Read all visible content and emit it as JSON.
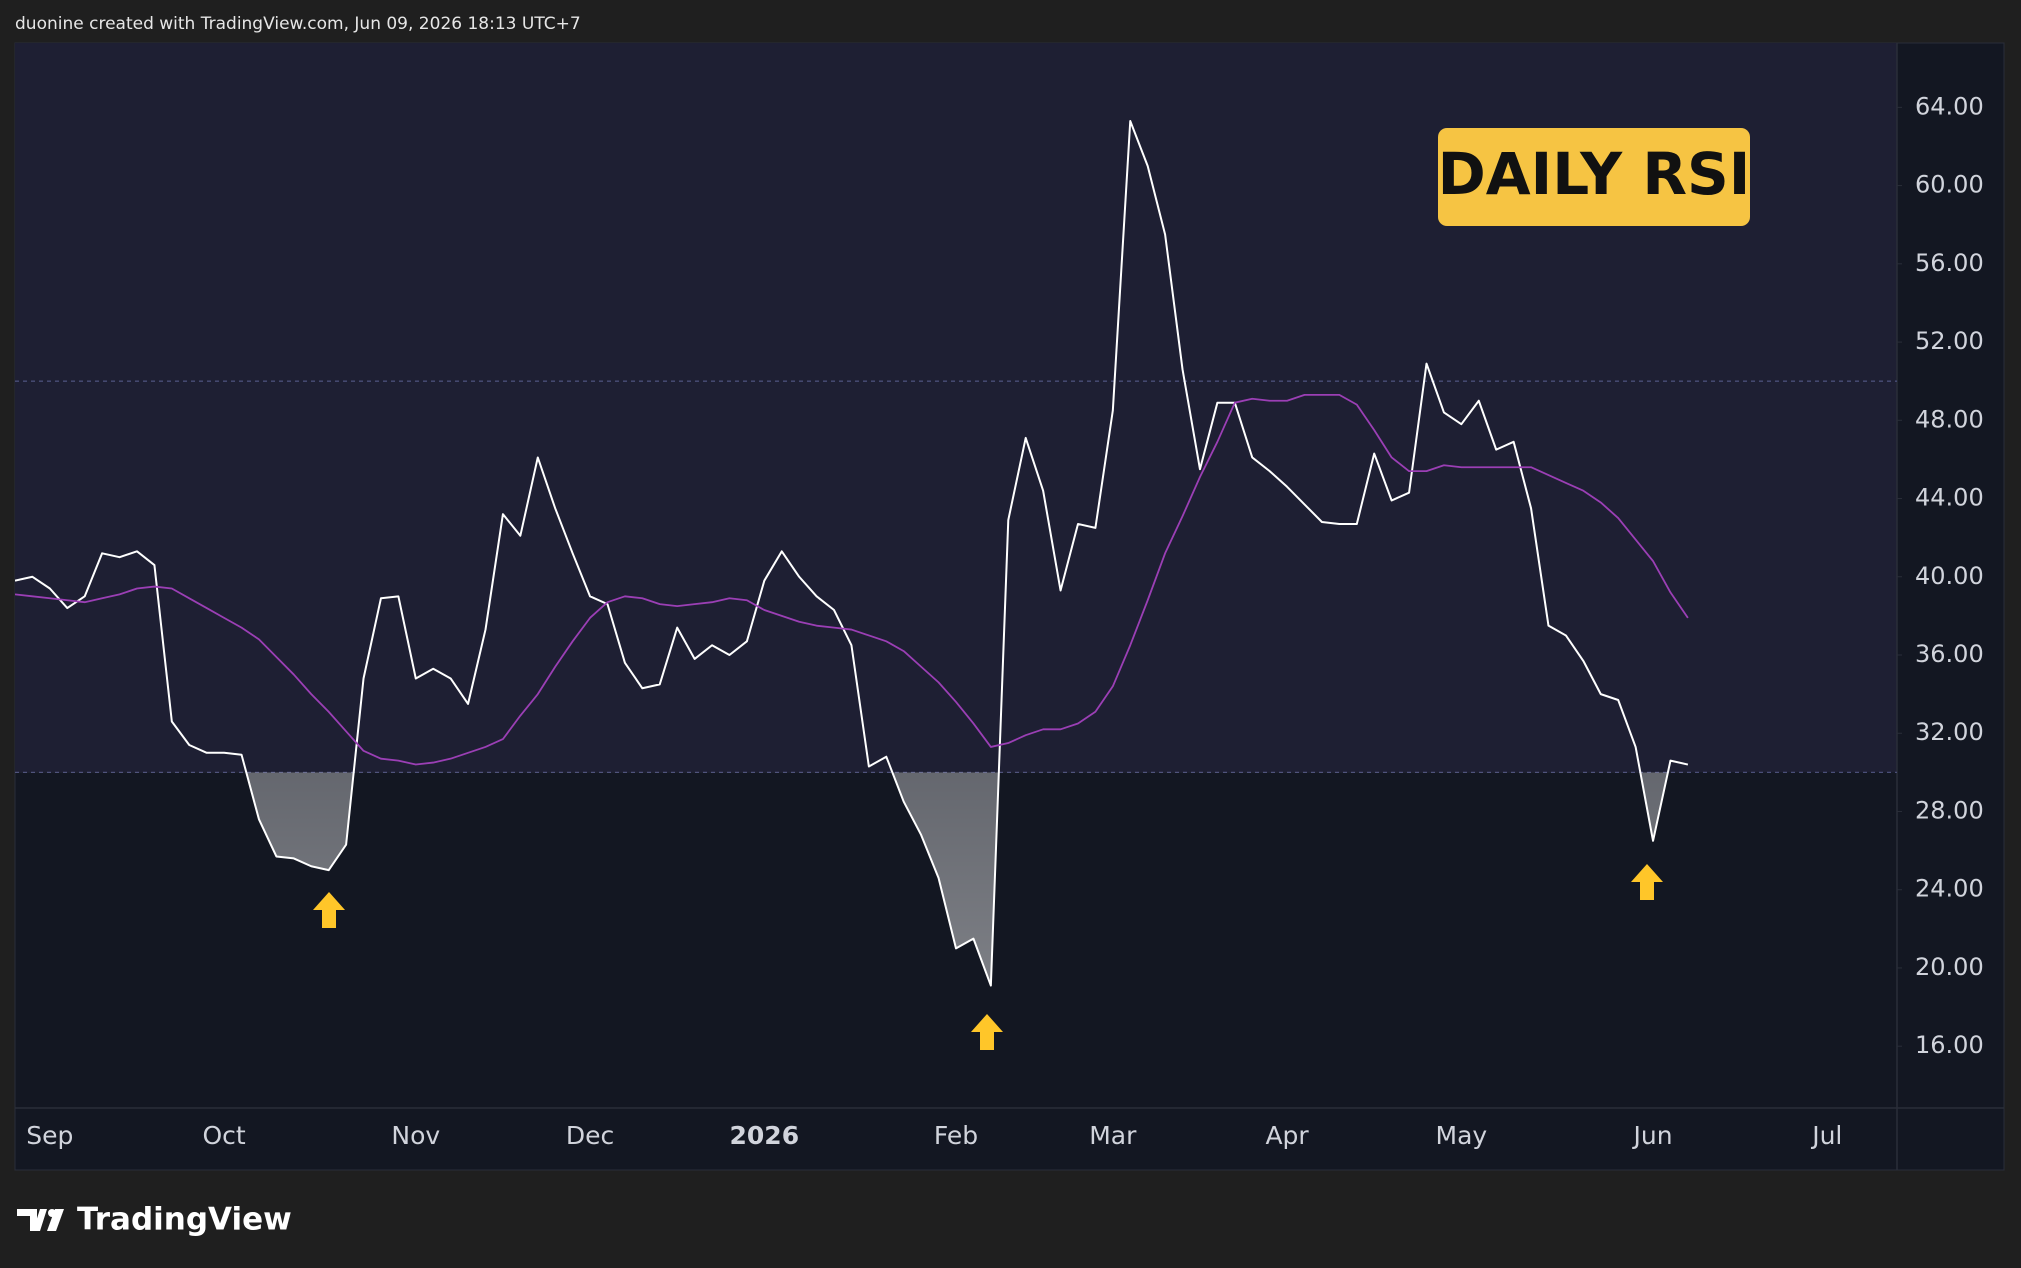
{
  "header": {
    "text": "duonine created with TradingView.com, Jun 09, 2026 18:13 UTC+7"
  },
  "footer": {
    "brand": "TradingView"
  },
  "chart_data": {
    "type": "line",
    "annotation": "DAILY RSI",
    "categories": [
      null,
      null,
      "Sep",
      null,
      null,
      null,
      null,
      null,
      null,
      null,
      null,
      null,
      "Oct",
      null,
      null,
      null,
      null,
      null,
      null,
      null,
      null,
      null,
      null,
      "Nov",
      null,
      null,
      null,
      null,
      null,
      null,
      null,
      null,
      null,
      "Dec",
      null,
      null,
      null,
      null,
      null,
      null,
      null,
      null,
      null,
      "2026",
      null,
      null,
      null,
      null,
      null,
      null,
      null,
      null,
      null,
      null,
      "Feb",
      null,
      null,
      null,
      null,
      null,
      null,
      null,
      null,
      "Mar",
      null,
      null,
      null,
      null,
      null,
      null,
      null,
      null,
      null,
      "Apr",
      null,
      null,
      null,
      null,
      null,
      null,
      null,
      null,
      null,
      "May",
      null,
      null,
      null,
      null,
      null,
      null,
      null,
      null,
      null,
      null,
      "Jun",
      null,
      null,
      null,
      null,
      null,
      null,
      null,
      null,
      null,
      "Jul",
      null,
      null,
      null,
      null
    ],
    "series": [
      {
        "color": "#ffffff",
        "values": [
          39.8,
          40.0,
          39.4,
          38.4,
          39.0,
          41.2,
          41.0,
          41.3,
          40.6,
          32.6,
          31.4,
          31.0,
          31.0,
          30.9,
          27.6,
          25.7,
          25.6,
          25.2,
          25.0,
          26.3,
          34.8,
          38.9,
          39.0,
          34.8,
          35.3,
          34.8,
          33.5,
          37.3,
          43.2,
          42.1,
          46.1,
          43.5,
          41.2,
          39.0,
          38.6,
          35.6,
          34.3,
          34.5,
          37.4,
          35.8,
          36.5,
          36.0,
          36.7,
          39.8,
          41.3,
          40.0,
          39.0,
          38.3,
          36.5,
          30.3,
          30.8,
          28.5,
          26.8,
          24.6,
          21.0,
          21.5,
          19.1,
          42.9,
          47.1,
          44.4,
          39.3,
          42.7,
          42.5,
          48.5,
          63.3,
          61.0,
          57.5,
          50.6,
          45.5,
          48.9,
          48.9,
          46.1,
          45.4,
          44.6,
          43.7,
          42.8,
          42.7,
          42.7,
          46.3,
          43.9,
          44.3,
          50.9,
          48.4,
          47.8,
          49.0,
          46.5,
          46.9,
          43.5,
          37.5,
          37.0,
          35.7,
          34.0,
          33.7,
          31.3,
          26.5,
          30.6,
          30.4,
          null,
          null,
          null,
          null,
          null,
          null,
          null,
          null,
          null,
          null,
          null,
          null
        ]
      },
      {
        "color": "#9b3fb5",
        "values": [
          39.1,
          39.0,
          38.9,
          38.8,
          38.7,
          38.9,
          39.1,
          39.4,
          39.5,
          39.4,
          38.9,
          38.4,
          37.9,
          37.4,
          36.8,
          35.9,
          35.0,
          34.0,
          33.1,
          32.1,
          31.1,
          30.7,
          30.6,
          30.4,
          30.5,
          30.7,
          31.0,
          31.3,
          31.7,
          32.9,
          34.0,
          35.4,
          36.7,
          37.9,
          38.7,
          39.0,
          38.9,
          38.6,
          38.5,
          38.6,
          38.7,
          38.9,
          38.8,
          38.3,
          38.0,
          37.7,
          37.5,
          37.4,
          37.3,
          37.0,
          36.7,
          36.2,
          35.4,
          34.6,
          33.6,
          32.5,
          31.3,
          31.5,
          31.9,
          32.2,
          32.2,
          32.5,
          33.1,
          34.4,
          36.5,
          38.8,
          41.2,
          43.1,
          45.1,
          46.9,
          48.9,
          49.1,
          49.0,
          49.0,
          49.3,
          49.3,
          49.3,
          48.8,
          47.5,
          46.1,
          45.4,
          45.4,
          45.7,
          45.6,
          45.6,
          45.6,
          45.6,
          45.6,
          45.2,
          44.8,
          44.4,
          43.8,
          43.0,
          41.9,
          40.8,
          39.2,
          37.9,
          null,
          null,
          null,
          null,
          null,
          null,
          null,
          null,
          null,
          null,
          null,
          null
        ]
      }
    ],
    "levels": [
      50,
      30
    ],
    "oversold_fill": true,
    "ylim": [
      12.84,
      67.29
    ],
    "yticks": [
      {
        "value": 16,
        "label": "16.00"
      },
      {
        "value": 20,
        "label": "20.00"
      },
      {
        "value": 24,
        "label": "24.00"
      },
      {
        "value": 28,
        "label": "28.00"
      },
      {
        "value": 32,
        "label": "32.00"
      },
      {
        "value": 36,
        "label": "36.00"
      },
      {
        "value": 40,
        "label": "40.00"
      },
      {
        "value": 44,
        "label": "44.00"
      },
      {
        "value": 48,
        "label": "48.00"
      },
      {
        "value": 52,
        "label": "52.00"
      },
      {
        "value": 56,
        "label": "56.00"
      },
      {
        "value": 60,
        "label": "60.00"
      },
      {
        "value": 64,
        "label": "64.00"
      }
    ],
    "grid": false
  }
}
